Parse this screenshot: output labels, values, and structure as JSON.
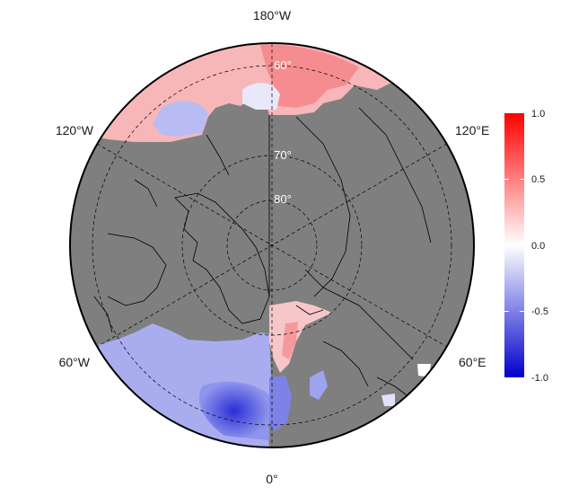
{
  "map": {
    "projection": "north-polar-stereographic",
    "land_color": "#7f7f7f",
    "coast_color": "#000000",
    "longitude_labels": {
      "top": "180°W",
      "bottom": "0°",
      "upper_left": "120°W",
      "upper_right": "120°E",
      "lower_left": "60°W",
      "lower_right": "60°E"
    },
    "latitude_labels": [
      "60°",
      "70°",
      "80°"
    ]
  },
  "colorbar": {
    "min": -1.0,
    "max": 1.0,
    "colors": [
      "#0000cc",
      "#ffffff",
      "#ff0000"
    ],
    "ticks": [
      "1.0",
      "0.5",
      "0.0",
      "-0.5",
      "-1.0"
    ]
  }
}
